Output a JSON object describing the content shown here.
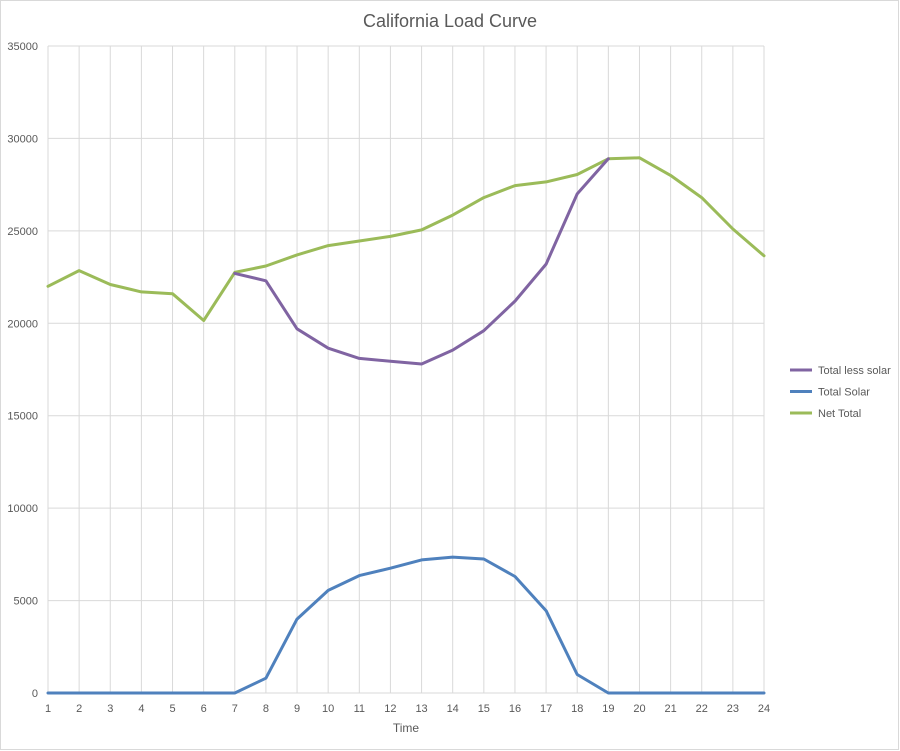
{
  "chart_data": {
    "type": "line",
    "title": "California Load Curve",
    "xlabel": "Time",
    "ylabel": "",
    "x": [
      1,
      2,
      3,
      4,
      5,
      6,
      7,
      8,
      9,
      10,
      11,
      12,
      13,
      14,
      15,
      16,
      17,
      18,
      19,
      20,
      21,
      22,
      23,
      24
    ],
    "xlim": [
      1,
      24
    ],
    "ylim": [
      0,
      35000
    ],
    "yticks": [
      0,
      5000,
      10000,
      15000,
      20000,
      25000,
      30000,
      35000
    ],
    "grid": "vertical and horizontal",
    "legend_position": "right",
    "series": [
      {
        "name": "Total less solar",
        "color": "#8064a2",
        "x": [
          7,
          8,
          9,
          10,
          11,
          12,
          13,
          14,
          15,
          16,
          17,
          18,
          19
        ],
        "values": [
          22700,
          22300,
          19700,
          18650,
          18100,
          17950,
          17800,
          18550,
          19600,
          21200,
          23200,
          27000,
          28900
        ]
      },
      {
        "name": "Total Solar",
        "color": "#4f81bd",
        "x": [
          1,
          2,
          3,
          4,
          5,
          6,
          7,
          8,
          9,
          10,
          11,
          12,
          13,
          14,
          15,
          16,
          17,
          18,
          19,
          20,
          21,
          22,
          23,
          24
        ],
        "values": [
          0,
          0,
          0,
          0,
          0,
          0,
          0,
          800,
          4000,
          5550,
          6350,
          6750,
          7200,
          7350,
          7250,
          6300,
          4450,
          1000,
          0,
          0,
          0,
          0,
          0,
          0
        ]
      },
      {
        "name": "Net Total",
        "color": "#9bbb59",
        "x": [
          1,
          2,
          3,
          4,
          5,
          6,
          7,
          8,
          9,
          10,
          11,
          12,
          13,
          14,
          15,
          16,
          17,
          18,
          19,
          20,
          21,
          22,
          23,
          24
        ],
        "values": [
          22000,
          22850,
          22100,
          21700,
          21600,
          20150,
          22750,
          23100,
          23700,
          24200,
          24450,
          24700,
          25050,
          25850,
          26800,
          27450,
          27650,
          28050,
          28900,
          28950,
          28000,
          26800,
          25100,
          23650
        ]
      }
    ]
  }
}
